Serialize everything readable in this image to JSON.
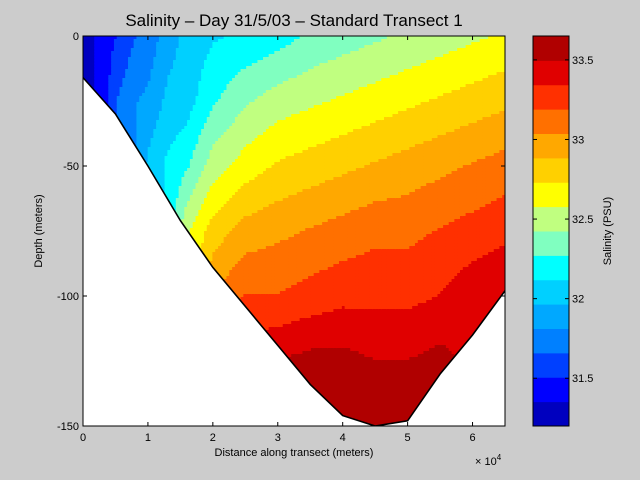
{
  "chart_data": {
    "type": "heatmap",
    "subtype": "filled-contour",
    "title": "Salinity – Day 31/5/03 – Standard Transect 1",
    "xlabel": "Distance along transect (meters)",
    "ylabel": "Depth (meters)",
    "x_multiplier_label": "× 10",
    "x_multiplier_exp": "4",
    "xlim": [
      0,
      65000
    ],
    "ylim": [
      -150,
      0
    ],
    "x_ticks": [
      {
        "value": 0,
        "label": "0"
      },
      {
        "value": 10000,
        "label": "1"
      },
      {
        "value": 20000,
        "label": "2"
      },
      {
        "value": 30000,
        "label": "3"
      },
      {
        "value": 40000,
        "label": "4"
      },
      {
        "value": 50000,
        "label": "5"
      },
      {
        "value": 60000,
        "label": "6"
      }
    ],
    "y_ticks": [
      {
        "value": 0,
        "label": "0"
      },
      {
        "value": -50,
        "label": "-50"
      },
      {
        "value": -100,
        "label": "-100"
      },
      {
        "value": -150,
        "label": "-150"
      }
    ],
    "seabed_profile": {
      "x": [
        0,
        5000,
        10000,
        15000,
        20000,
        25000,
        30000,
        35000,
        40000,
        45000,
        50000,
        55000,
        60000,
        65000
      ],
      "depth": [
        -16,
        -30,
        -50,
        -71,
        -89,
        -104,
        -119,
        -134,
        -146,
        -150,
        -148,
        -130,
        -115,
        -98
      ]
    },
    "contour_depth_grid": [
      0,
      -25,
      -50,
      -75,
      -100,
      -125,
      -150
    ],
    "salinity_profiles": [
      {
        "x": 0,
        "values": [
          31.3
        ]
      },
      {
        "x": 3000,
        "values": [
          31.4
        ]
      },
      {
        "x": 5000,
        "values": [
          31.5,
          31.65
        ]
      },
      {
        "x": 8000,
        "values": [
          31.65,
          31.8
        ]
      },
      {
        "x": 10000,
        "values": [
          31.7,
          31.85,
          32.0
        ]
      },
      {
        "x": 13000,
        "values": [
          31.9,
          32.0,
          32.15
        ]
      },
      {
        "x": 16000,
        "values": [
          32.0,
          32.05,
          32.25,
          32.55
        ]
      },
      {
        "x": 20000,
        "values": [
          32.1,
          32.25,
          32.5,
          32.8,
          33.05
        ]
      },
      {
        "x": 25000,
        "values": [
          32.15,
          32.4,
          32.65,
          32.95,
          33.2,
          33.45
        ]
      },
      {
        "x": 30000,
        "values": [
          32.2,
          32.5,
          32.75,
          33.0,
          33.2,
          33.5
        ]
      },
      {
        "x": 35000,
        "values": [
          32.3,
          32.55,
          32.8,
          33.05,
          33.25,
          33.55,
          33.65
        ]
      },
      {
        "x": 40000,
        "values": [
          32.35,
          32.6,
          32.85,
          33.1,
          33.3,
          33.55,
          33.65
        ]
      },
      {
        "x": 45000,
        "values": [
          32.4,
          32.65,
          32.9,
          33.15,
          33.3,
          33.5,
          33.6
        ]
      },
      {
        "x": 50000,
        "values": [
          32.45,
          32.7,
          32.95,
          33.15,
          33.3,
          33.5,
          33.6
        ]
      },
      {
        "x": 55000,
        "values": [
          32.5,
          32.75,
          33.0,
          33.2,
          33.35,
          33.55
        ]
      },
      {
        "x": 60000,
        "values": [
          32.55,
          32.8,
          33.05,
          33.25,
          33.45
        ]
      },
      {
        "x": 65000,
        "values": [
          32.6,
          32.85,
          33.1,
          33.3,
          33.5
        ]
      }
    ],
    "colorbar": {
      "label": "Salinity (PSU)",
      "range": [
        31.2,
        33.65
      ],
      "levels": 15,
      "ticks": [
        {
          "value": 31.5,
          "label": "31.5"
        },
        {
          "value": 32,
          "label": "32"
        },
        {
          "value": 32.5,
          "label": "32.5"
        },
        {
          "value": 33,
          "label": "33"
        },
        {
          "value": 33.5,
          "label": "33.5"
        }
      ],
      "colors": [
        "#0000bf",
        "#0000ff",
        "#0040ff",
        "#0080ff",
        "#00a8ff",
        "#00d0ff",
        "#00ffff",
        "#80ffc0",
        "#c0ff80",
        "#ffff00",
        "#ffd000",
        "#ffa800",
        "#ff7000",
        "#ff3000",
        "#e00000",
        "#b00000"
      ]
    }
  }
}
